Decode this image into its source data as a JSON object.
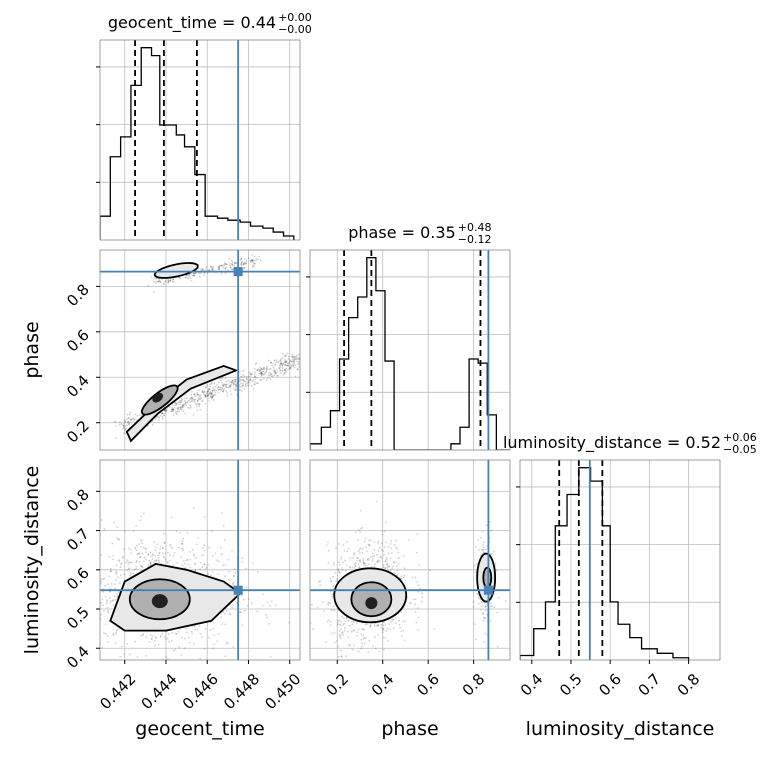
{
  "chart_data": {
    "type": "corner",
    "parameters": [
      "geocent_time",
      "phase",
      "luminosity_distance"
    ],
    "truths": {
      "geocent_time": 0.4475,
      "phase": 0.865,
      "luminosity_distance": 0.548
    },
    "axes": {
      "geocent_time": {
        "range": [
          0.4408,
          0.4505
        ],
        "ticks": [
          0.442,
          0.444,
          0.446,
          0.448,
          0.45
        ],
        "tick_labels": [
          "0.442",
          "0.444",
          "0.446",
          "0.448",
          "0.450"
        ]
      },
      "phase": {
        "range": [
          0.08,
          0.96
        ],
        "ticks": [
          0.2,
          0.4,
          0.6,
          0.8
        ],
        "tick_labels": [
          "0.2",
          "0.4",
          "0.6",
          "0.8"
        ]
      },
      "luminosity_distance": {
        "range": [
          0.37,
          0.88
        ],
        "ticks": [
          0.4,
          0.5,
          0.6,
          0.7,
          0.8
        ],
        "tick_labels": [
          "0.4",
          "0.5",
          "0.6",
          "0.7",
          "0.8"
        ]
      }
    },
    "titles": [
      {
        "param": "geocent_time",
        "prefix": "geocent_time = ",
        "median": "0.44",
        "plus": "+0.00",
        "minus": "−0.00"
      },
      {
        "param": "phase",
        "prefix": "phase = ",
        "median": "0.35",
        "plus": "+0.48",
        "minus": "−0.12"
      },
      {
        "param": "luminosity_distance",
        "prefix": "luminosity_distance = ",
        "median": "0.52",
        "plus": "+0.06",
        "minus": "−0.05"
      }
    ],
    "quantiles": {
      "geocent_time": [
        0.4425,
        0.4439,
        0.4455
      ],
      "phase": [
        0.23,
        0.35,
        0.83
      ],
      "luminosity_distance": [
        0.47,
        0.52,
        0.58
      ]
    },
    "histograms": {
      "geocent_time": {
        "edges": [
          0.4408,
          0.4413,
          0.4418,
          0.4423,
          0.4428,
          0.4433,
          0.4437,
          0.4441,
          0.4445,
          0.4449,
          0.4454,
          0.4459,
          0.4465,
          0.447,
          0.4476,
          0.4481,
          0.4487,
          0.4492,
          0.4497,
          0.4502
        ],
        "counts": [
          12,
          42,
          52,
          78,
          97,
          93,
          58,
          58,
          53,
          47,
          33,
          12,
          11,
          10,
          9,
          7,
          6,
          4,
          2
        ]
      },
      "phase": {
        "edges": [
          0.08,
          0.13,
          0.17,
          0.21,
          0.25,
          0.29,
          0.33,
          0.37,
          0.41,
          0.45,
          0.7,
          0.74,
          0.78,
          0.82,
          0.86,
          0.9,
          0.96
        ],
        "counts": [
          3,
          11,
          19,
          44,
          64,
          74,
          93,
          77,
          43,
          0,
          3,
          11,
          44,
          42,
          17,
          0
        ]
      },
      "luminosity_distance": {
        "edges": [
          0.37,
          0.405,
          0.435,
          0.46,
          0.49,
          0.52,
          0.55,
          0.58,
          0.6,
          0.62,
          0.65,
          0.68,
          0.72,
          0.76,
          0.8
        ],
        "counts": [
          2,
          14,
          26,
          60,
          74,
          86,
          80,
          60,
          26,
          16,
          10,
          5,
          3,
          1
        ]
      }
    }
  }
}
